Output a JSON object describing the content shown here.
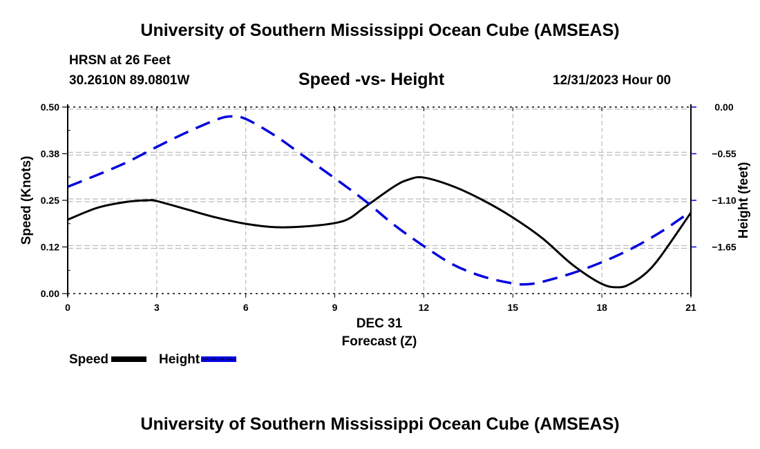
{
  "header": {
    "title": "University of Southern Mississippi Ocean Cube (AMSEAS)",
    "station": "HRSN at 26 Feet",
    "coordinates": "30.2610N  89.0801W",
    "chart_title": "Speed -vs- Height",
    "run_time": "12/31/2023 Hour 00"
  },
  "footer": {
    "title": "University of Southern Mississippi Ocean Cube (AMSEAS)"
  },
  "colors": {
    "speed": "#000000",
    "height": "#0000dd",
    "grid": "#bbbbbb"
  },
  "chart_data": {
    "type": "line",
    "title": "Speed -vs- Height",
    "xlabel": "Forecast (Z)",
    "xlabel_date": "DEC 31",
    "ylabel": "Speed (Knots)",
    "y2label": "Height (feet)",
    "xlim": [
      0,
      21
    ],
    "ylim": [
      0,
      0.5
    ],
    "y2lim": [
      -2.2,
      0
    ],
    "x_ticks": [
      0,
      3,
      6,
      9,
      12,
      15,
      18,
      21
    ],
    "x_tick_labels": [
      "0",
      "3",
      "6",
      "9",
      "12",
      "15",
      "18",
      "21"
    ],
    "y_ticks": [
      0,
      0.125,
      0.25,
      0.375,
      0.5
    ],
    "y_tick_labels": [
      "0.00",
      "0.12",
      "0.25",
      "0.38",
      "0.50"
    ],
    "y2_ticks": [
      0,
      -0.55,
      -1.1,
      -1.65
    ],
    "y2_tick_labels": [
      "0.00",
      "−0.55",
      "−1.10",
      "−1.65"
    ],
    "grid": true,
    "legend": {
      "placement": "bottom-left",
      "entries": [
        "Speed",
        "Height"
      ]
    },
    "series": [
      {
        "name": "Speed",
        "axis": "left",
        "style": "solid",
        "x": [
          0,
          1,
          2,
          2.7,
          3,
          4,
          5,
          6,
          7,
          8,
          9,
          9.5,
          10,
          11,
          11.5,
          12,
          13,
          14,
          15,
          16,
          17,
          18,
          18.6,
          19,
          19.5,
          20,
          21
        ],
        "values": [
          0.198,
          0.23,
          0.246,
          0.25,
          0.248,
          0.226,
          0.204,
          0.187,
          0.178,
          0.18,
          0.189,
          0.202,
          0.231,
          0.287,
          0.306,
          0.311,
          0.287,
          0.25,
          0.204,
          0.148,
          0.078,
          0.026,
          0.017,
          0.028,
          0.056,
          0.102,
          0.217
        ]
      },
      {
        "name": "Height",
        "axis": "right",
        "style": "dashed",
        "x": [
          0,
          1,
          2,
          3,
          4,
          5,
          5.5,
          6,
          7,
          8,
          9,
          10,
          11,
          12,
          13,
          14,
          15,
          15.5,
          16,
          17,
          18,
          19,
          20,
          21
        ],
        "values": [
          -0.94,
          -0.8,
          -0.65,
          -0.47,
          -0.3,
          -0.15,
          -0.11,
          -0.14,
          -0.34,
          -0.59,
          -0.84,
          -1.1,
          -1.39,
          -1.64,
          -1.86,
          -2.0,
          -2.08,
          -2.09,
          -2.06,
          -1.96,
          -1.83,
          -1.67,
          -1.47,
          -1.23
        ]
      }
    ]
  }
}
